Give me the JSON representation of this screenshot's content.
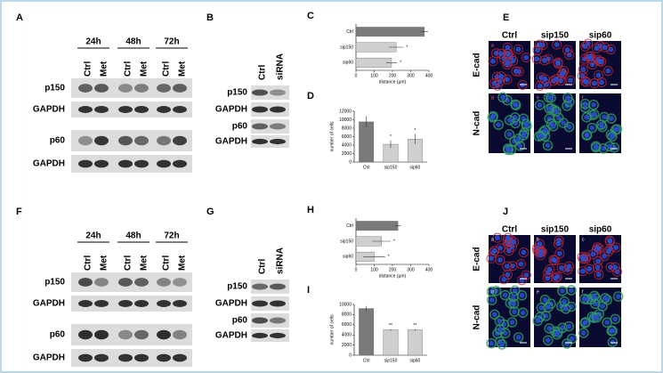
{
  "blot_panels": [
    {
      "label": "A",
      "times": [
        "24h",
        "48h",
        "72h"
      ],
      "lanes": [
        "Ctrl",
        "Met",
        "Ctrl",
        "Met",
        "Ctrl",
        "Met"
      ],
      "rows": [
        "p150",
        "GAPDH",
        "p60",
        "GAPDH"
      ]
    },
    {
      "label": "B",
      "lanes": [
        "Ctrl",
        "siRNA"
      ],
      "rows": [
        "p150",
        "GAPDH",
        "p60",
        "GAPDH"
      ]
    },
    {
      "label": "F",
      "times": [
        "24h",
        "48h",
        "72h"
      ],
      "lanes": [
        "Ctrl",
        "Met",
        "Ctrl",
        "Met",
        "Ctrl",
        "Met"
      ],
      "rows": [
        "p150",
        "GAPDH",
        "p60",
        "GAPDH"
      ]
    },
    {
      "label": "G",
      "lanes": [
        "Ctrl",
        "siRNA"
      ],
      "rows": [
        "p150",
        "GAPDH",
        "p60",
        "GAPDH"
      ]
    }
  ],
  "image_panels": [
    {
      "label": "E",
      "columns": [
        "Ctrl",
        "sip150",
        "sip60"
      ],
      "rows": [
        "E-cad",
        "N-cad"
      ],
      "letters": [
        "a",
        "b",
        "c",
        "d",
        "e",
        "f"
      ]
    },
    {
      "label": "J",
      "columns": [
        "Ctrl",
        "sip150",
        "sip60"
      ],
      "rows": [
        "E-cad",
        "N-cad"
      ],
      "letters": [
        "a",
        "b",
        "c",
        "d",
        "e",
        "f"
      ]
    }
  ],
  "chart_data": [
    {
      "type": "barh",
      "label": "C",
      "categories": [
        "Ctrl",
        "sip150",
        "sip60"
      ],
      "values": [
        375,
        220,
        195
      ],
      "errors": [
        20,
        40,
        30
      ],
      "significance": [
        null,
        "*",
        "*"
      ],
      "colors": [
        "#7a7a7a",
        "#cfcfcf",
        "#cfcfcf"
      ],
      "xlim": [
        0,
        400
      ],
      "xticks": [
        0,
        100,
        200,
        300,
        400
      ],
      "x_label": "distance (µm)"
    },
    {
      "type": "bar",
      "label": "D",
      "categories": [
        "Ctrl",
        "sip150",
        "sip60"
      ],
      "values": [
        9500,
        4200,
        5400
      ],
      "errors": [
        1300,
        900,
        1200
      ],
      "significance": [
        null,
        "*",
        "*"
      ],
      "colors": [
        "#7a7a7a",
        "#cfcfcf",
        "#cfcfcf"
      ],
      "ylim": [
        0,
        12000
      ],
      "yticks": [
        0,
        2000,
        4000,
        6000,
        8000,
        10000,
        12000
      ],
      "y_label": "number of cells"
    },
    {
      "type": "barh",
      "label": "H",
      "categories": [
        "Ctrl",
        "sip150",
        "sip60"
      ],
      "values": [
        230,
        140,
        100
      ],
      "errors": [
        15,
        50,
        60
      ],
      "significance": [
        null,
        "*",
        "*"
      ],
      "colors": [
        "#7a7a7a",
        "#cfcfcf",
        "#cfcfcf"
      ],
      "xlim": [
        0,
        400
      ],
      "xticks": [
        0,
        100,
        200,
        300,
        400
      ],
      "x_label": "distance (µm)"
    },
    {
      "type": "bar",
      "label": "I",
      "categories": [
        "Ctrl",
        "sip150",
        "sip60"
      ],
      "values": [
        9200,
        5000,
        5000
      ],
      "errors": [
        500,
        150,
        150
      ],
      "significance": [
        null,
        "**",
        "**"
      ],
      "colors": [
        "#7a7a7a",
        "#cfcfcf",
        "#cfcfcf"
      ],
      "ylim": [
        0,
        10000
      ],
      "yticks": [
        0,
        2000,
        4000,
        6000,
        8000,
        10000
      ],
      "y_label": "number of cells"
    }
  ]
}
